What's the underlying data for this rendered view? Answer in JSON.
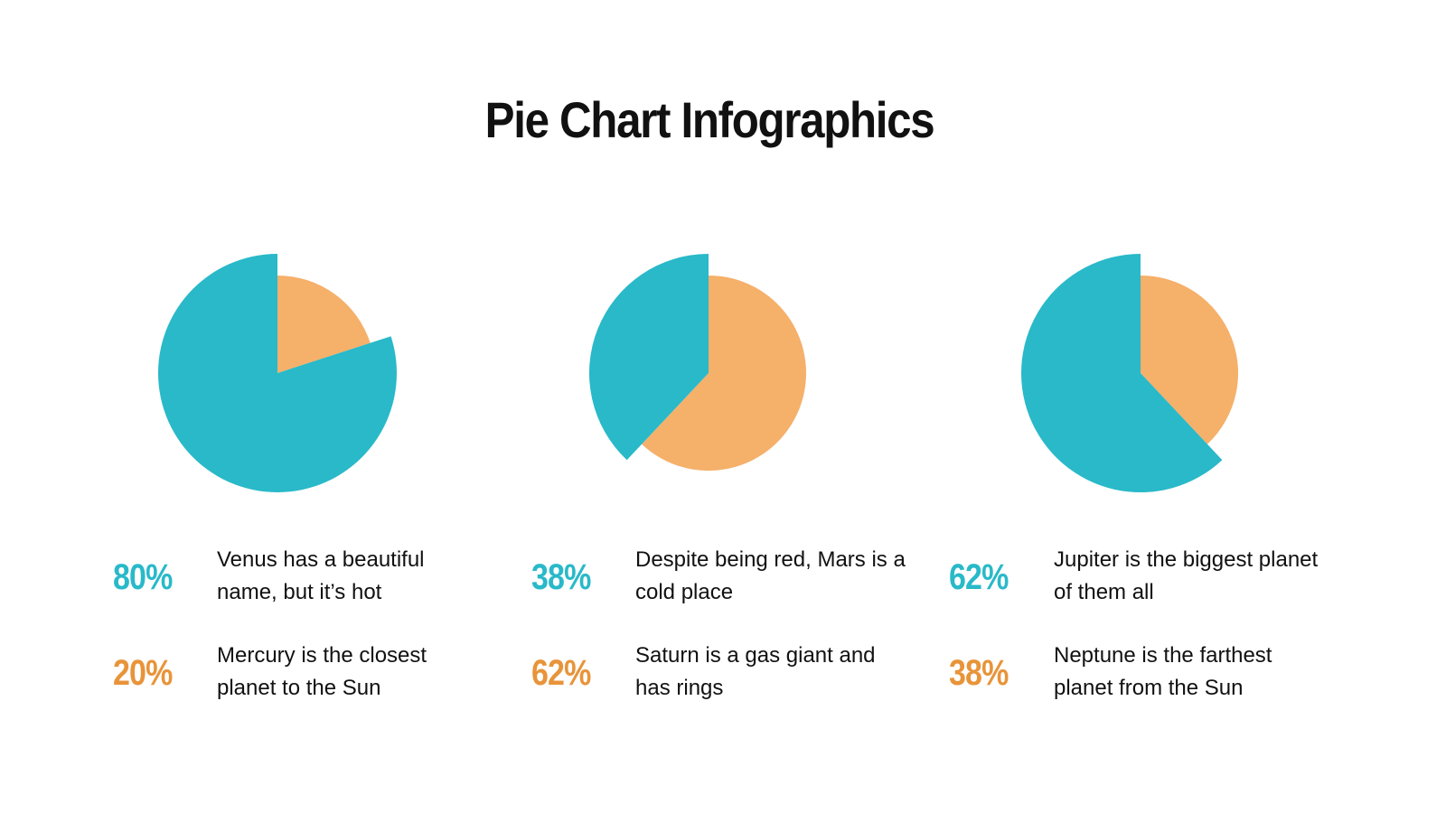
{
  "title": "Pie Chart Infographics",
  "colors": {
    "teal": "#29B9C9",
    "orange": "#F5B06A",
    "orange_text": "#E8943A"
  },
  "chart_data": [
    {
      "type": "pie",
      "slices": [
        {
          "label": "Venus",
          "value": 80,
          "color": "#29B9C9"
        },
        {
          "label": "Mercury",
          "value": 20,
          "color": "#F5B06A"
        }
      ]
    },
    {
      "type": "pie",
      "slices": [
        {
          "label": "Mars",
          "value": 38,
          "color": "#29B9C9"
        },
        {
          "label": "Saturn",
          "value": 62,
          "color": "#F5B06A"
        }
      ]
    },
    {
      "type": "pie",
      "slices": [
        {
          "label": "Jupiter",
          "value": 62,
          "color": "#29B9C9"
        },
        {
          "label": "Neptune",
          "value": 38,
          "color": "#F5B06A"
        }
      ]
    }
  ],
  "columns": [
    {
      "items": [
        {
          "pct": "80%",
          "text": "Venus has a beautiful name, but it’s hot"
        },
        {
          "pct": "20%",
          "text": "Mercury is the closest planet to the Sun"
        }
      ]
    },
    {
      "items": [
        {
          "pct": "38%",
          "text": "Despite being red, Mars is a cold place"
        },
        {
          "pct": "62%",
          "text": "Saturn is a gas giant and has rings"
        }
      ]
    },
    {
      "items": [
        {
          "pct": "62%",
          "text": "Jupiter is the biggest planet of them all"
        },
        {
          "pct": "38%",
          "text": "Neptune is the farthest planet from the Sun"
        }
      ]
    }
  ]
}
